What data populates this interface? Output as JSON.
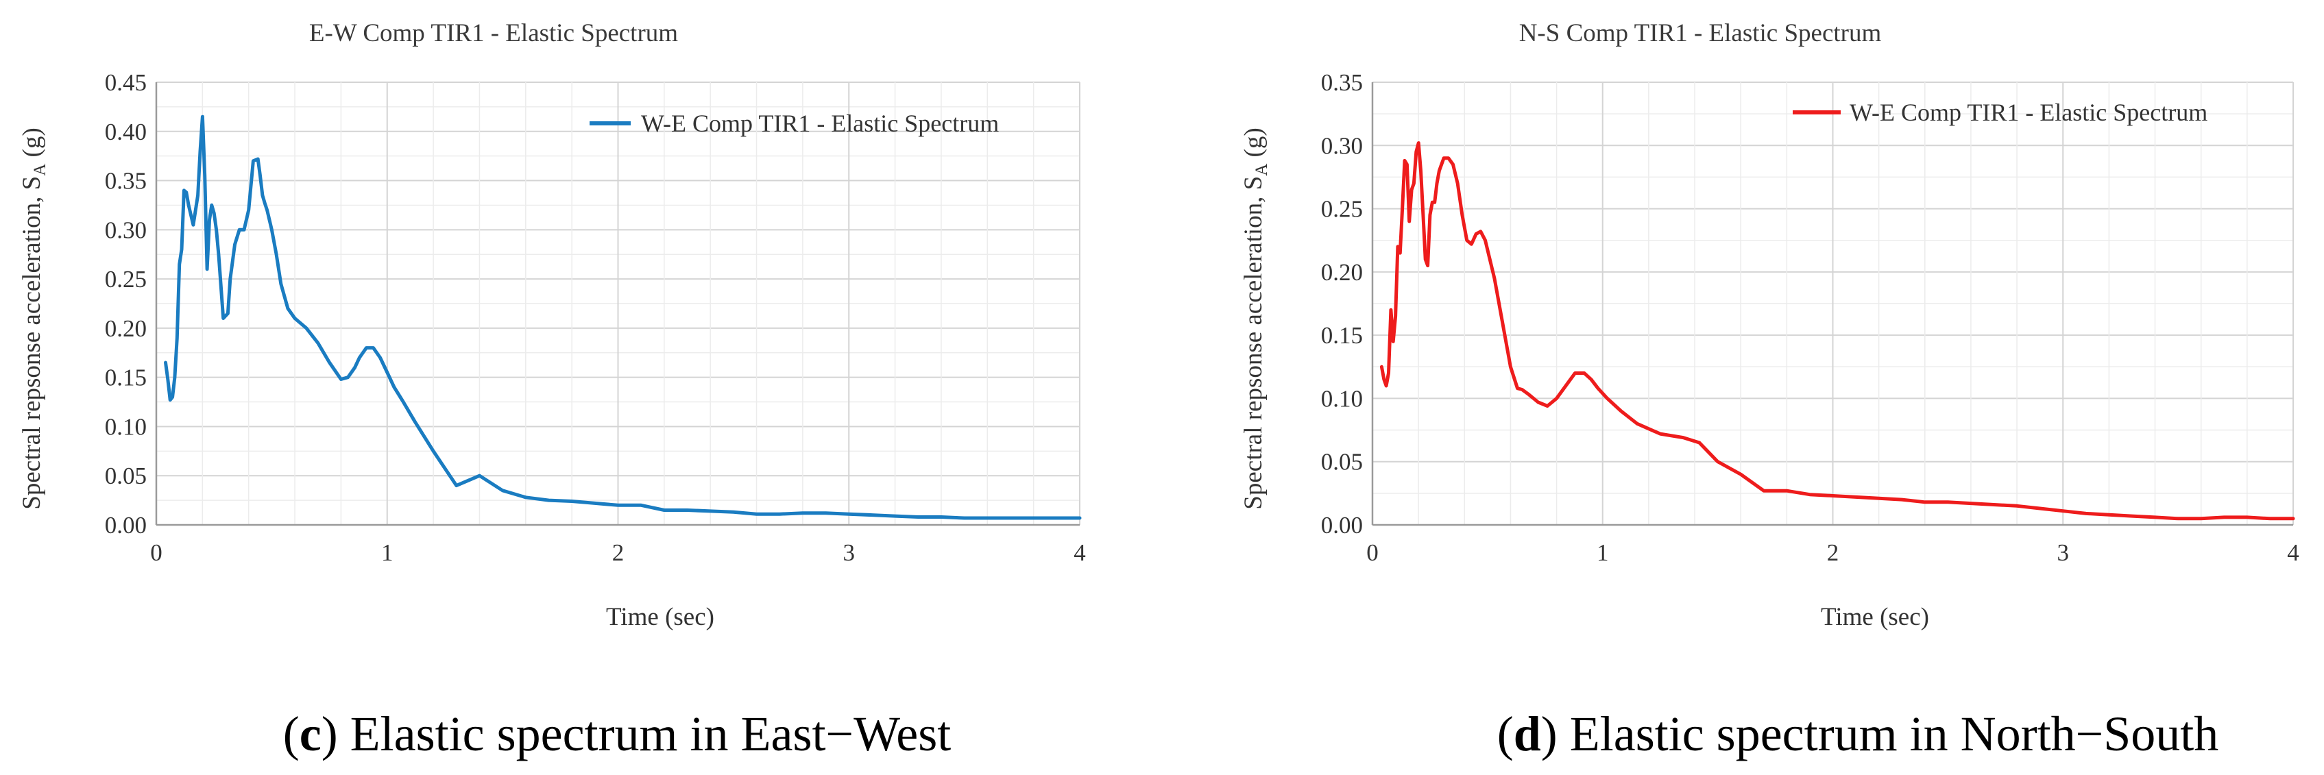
{
  "chart_data": [
    {
      "type": "line",
      "title": "E-W Comp TIR1 - Elastic Spectrum",
      "xlabel": "Time (sec)",
      "ylabel_main": "Spectral repsonse acceleration, S",
      "ylabel_sub": "A",
      "ylabel_unit": " (g)",
      "xlim": [
        0,
        4
      ],
      "ylim": [
        0,
        0.45
      ],
      "xticks": [
        "0",
        "1",
        "2",
        "3",
        "4"
      ],
      "yticks": [
        "0.00",
        "0.05",
        "0.10",
        "0.15",
        "0.20",
        "0.25",
        "0.30",
        "0.35",
        "0.40",
        "0.45"
      ],
      "grid": true,
      "legend_position": "top-right",
      "caption_letter": "c",
      "caption_text": ") Elastic spectrum in East−West",
      "series": [
        {
          "name": "W-E Comp TIR1 - Elastic Spectrum",
          "color": "#1a7cc1",
          "x": [
            0.04,
            0.05,
            0.06,
            0.07,
            0.08,
            0.09,
            0.1,
            0.11,
            0.12,
            0.13,
            0.14,
            0.16,
            0.18,
            0.19,
            0.2,
            0.21,
            0.22,
            0.23,
            0.24,
            0.25,
            0.26,
            0.27,
            0.29,
            0.31,
            0.32,
            0.34,
            0.36,
            0.38,
            0.4,
            0.42,
            0.44,
            0.45,
            0.46,
            0.47,
            0.48,
            0.5,
            0.52,
            0.54,
            0.57,
            0.6,
            0.65,
            0.7,
            0.75,
            0.8,
            0.83,
            0.86,
            0.88,
            0.91,
            0.94,
            0.97,
            1.0,
            1.03,
            1.07,
            1.12,
            1.2,
            1.3,
            1.4,
            1.5,
            1.6,
            1.7,
            1.8,
            1.9,
            2.0,
            2.1,
            2.2,
            2.3,
            2.4,
            2.5,
            2.6,
            2.7,
            2.8,
            2.9,
            3.0,
            3.1,
            3.2,
            3.3,
            3.4,
            3.5,
            3.6,
            3.7,
            3.8,
            3.9,
            4.0
          ],
          "y": [
            0.165,
            0.148,
            0.127,
            0.13,
            0.15,
            0.19,
            0.265,
            0.28,
            0.34,
            0.338,
            0.325,
            0.305,
            0.335,
            0.38,
            0.415,
            0.355,
            0.26,
            0.31,
            0.325,
            0.317,
            0.3,
            0.275,
            0.21,
            0.215,
            0.25,
            0.285,
            0.3,
            0.3,
            0.32,
            0.37,
            0.372,
            0.355,
            0.335,
            0.327,
            0.32,
            0.3,
            0.275,
            0.245,
            0.22,
            0.21,
            0.2,
            0.185,
            0.165,
            0.148,
            0.15,
            0.16,
            0.17,
            0.18,
            0.18,
            0.17,
            0.155,
            0.14,
            0.125,
            0.105,
            0.075,
            0.04,
            0.05,
            0.035,
            0.028,
            0.025,
            0.024,
            0.022,
            0.02,
            0.02,
            0.015,
            0.015,
            0.014,
            0.013,
            0.011,
            0.011,
            0.012,
            0.012,
            0.011,
            0.01,
            0.009,
            0.008,
            0.008,
            0.007,
            0.007,
            0.007,
            0.007,
            0.007,
            0.007
          ]
        }
      ]
    },
    {
      "type": "line",
      "title": "N-S Comp TIR1 - Elastic Spectrum",
      "xlabel": "Time (sec)",
      "ylabel_main": "Spectral repsonse acceleration, S",
      "ylabel_sub": "A",
      "ylabel_unit": " (g)",
      "xlim": [
        0,
        4
      ],
      "ylim": [
        0,
        0.35
      ],
      "xticks": [
        "0",
        "1",
        "2",
        "3",
        "4"
      ],
      "yticks": [
        "0.00",
        "0.05",
        "0.10",
        "0.15",
        "0.20",
        "0.25",
        "0.30",
        "0.35"
      ],
      "grid": true,
      "legend_position": "top-right",
      "caption_letter": "d",
      "caption_text": ") Elastic spectrum in North−South",
      "series": [
        {
          "name": "W-E Comp TIR1 - Elastic Spectrum",
          "color": "#ee1c1c",
          "x": [
            0.04,
            0.05,
            0.06,
            0.07,
            0.08,
            0.09,
            0.1,
            0.11,
            0.12,
            0.13,
            0.14,
            0.15,
            0.16,
            0.17,
            0.18,
            0.19,
            0.2,
            0.21,
            0.22,
            0.23,
            0.24,
            0.25,
            0.26,
            0.27,
            0.28,
            0.29,
            0.3,
            0.31,
            0.33,
            0.35,
            0.37,
            0.39,
            0.41,
            0.43,
            0.45,
            0.47,
            0.49,
            0.51,
            0.53,
            0.56,
            0.6,
            0.63,
            0.65,
            0.68,
            0.72,
            0.76,
            0.8,
            0.84,
            0.88,
            0.92,
            0.95,
            0.98,
            1.02,
            1.08,
            1.15,
            1.25,
            1.35,
            1.42,
            1.5,
            1.6,
            1.7,
            1.8,
            1.9,
            2.0,
            2.1,
            2.2,
            2.3,
            2.4,
            2.5,
            2.6,
            2.7,
            2.8,
            2.9,
            3.0,
            3.1,
            3.2,
            3.3,
            3.4,
            3.5,
            3.6,
            3.7,
            3.8,
            3.9,
            4.0
          ],
          "y": [
            0.125,
            0.115,
            0.11,
            0.12,
            0.17,
            0.145,
            0.165,
            0.22,
            0.215,
            0.25,
            0.288,
            0.285,
            0.24,
            0.265,
            0.27,
            0.295,
            0.302,
            0.28,
            0.245,
            0.21,
            0.205,
            0.245,
            0.255,
            0.255,
            0.27,
            0.28,
            0.285,
            0.29,
            0.29,
            0.285,
            0.27,
            0.245,
            0.225,
            0.222,
            0.23,
            0.232,
            0.225,
            0.21,
            0.195,
            0.165,
            0.125,
            0.108,
            0.107,
            0.103,
            0.097,
            0.094,
            0.1,
            0.11,
            0.12,
            0.12,
            0.115,
            0.108,
            0.1,
            0.09,
            0.08,
            0.072,
            0.069,
            0.065,
            0.05,
            0.04,
            0.027,
            0.027,
            0.024,
            0.023,
            0.022,
            0.021,
            0.02,
            0.018,
            0.018,
            0.017,
            0.016,
            0.015,
            0.013,
            0.011,
            0.009,
            0.008,
            0.007,
            0.006,
            0.005,
            0.005,
            0.006,
            0.006,
            0.005,
            0.005
          ]
        }
      ]
    }
  ]
}
